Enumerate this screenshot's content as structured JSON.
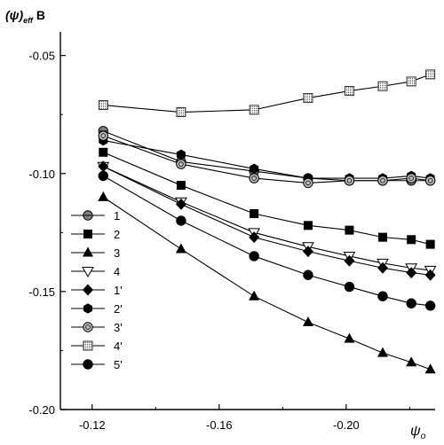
{
  "chart_data": {
    "type": "line",
    "ylabel_main": "(ψ)",
    "ylabel_sub": "eff",
    "ylabel_suffix": " B",
    "xlabel_main": "ψ",
    "xlabel_sub": "o",
    "xlim": [
      -0.11,
      -0.228
    ],
    "ylim": [
      -0.2,
      -0.04
    ],
    "xticks": [
      -0.12,
      -0.16,
      -0.2
    ],
    "xtick_labels": [
      "-0.12",
      "-0.16",
      "-0.20"
    ],
    "yticks": [
      -0.05,
      -0.1,
      -0.15,
      -0.2
    ],
    "ytick_labels": [
      "-0.05",
      "-0.10",
      "-0.15",
      "-0.20"
    ],
    "grid": false,
    "legend_position": "left-middle",
    "series": [
      {
        "name": "1",
        "marker": "circle-cross",
        "x": [
          -0.1235,
          -0.148,
          -0.171,
          -0.188,
          -0.201,
          -0.2115,
          -0.2205,
          -0.2265
        ],
        "y": [
          -0.082,
          -0.095,
          -0.099,
          -0.102,
          -0.103,
          -0.103,
          -0.103,
          -0.103
        ]
      },
      {
        "name": "2",
        "marker": "square",
        "x": [
          -0.1235,
          -0.148,
          -0.171,
          -0.188,
          -0.201,
          -0.2115,
          -0.2205,
          -0.2265
        ],
        "y": [
          -0.091,
          -0.105,
          -0.117,
          -0.122,
          -0.124,
          -0.127,
          -0.128,
          -0.13
        ]
      },
      {
        "name": "3",
        "marker": "triangle-up",
        "x": [
          -0.1235,
          -0.148,
          -0.171,
          -0.188,
          -0.201,
          -0.2115,
          -0.2205,
          -0.2265
        ],
        "y": [
          -0.11,
          -0.132,
          -0.152,
          -0.163,
          -0.17,
          -0.176,
          -0.18,
          -0.183
        ]
      },
      {
        "name": "4",
        "marker": "triangle-down",
        "x": [
          -0.1235,
          -0.148,
          -0.171,
          -0.188,
          -0.201,
          -0.2115,
          -0.2205,
          -0.2265
        ],
        "y": [
          -0.097,
          -0.112,
          -0.125,
          -0.131,
          -0.135,
          -0.138,
          -0.14,
          -0.141
        ]
      },
      {
        "name": "1'",
        "marker": "diamond",
        "x": [
          -0.1235,
          -0.148,
          -0.171,
          -0.188,
          -0.201,
          -0.2115,
          -0.2205,
          -0.2265
        ],
        "y": [
          -0.097,
          -0.113,
          -0.127,
          -0.133,
          -0.137,
          -0.14,
          -0.142,
          -0.143
        ]
      },
      {
        "name": "2'",
        "marker": "hexagon",
        "x": [
          -0.1235,
          -0.148,
          -0.171,
          -0.188,
          -0.201,
          -0.2115,
          -0.2205,
          -0.2265
        ],
        "y": [
          -0.086,
          -0.092,
          -0.098,
          -0.102,
          -0.102,
          -0.102,
          -0.101,
          -0.102
        ]
      },
      {
        "name": "3'",
        "marker": "circle-dot",
        "x": [
          -0.1235,
          -0.148,
          -0.171,
          -0.188,
          -0.201,
          -0.2115,
          -0.2205,
          -0.2265
        ],
        "y": [
          -0.084,
          -0.096,
          -0.102,
          -0.104,
          -0.103,
          -0.103,
          -0.102,
          -0.103
        ]
      },
      {
        "name": "4'",
        "marker": "square-dotted",
        "x": [
          -0.1235,
          -0.148,
          -0.171,
          -0.188,
          -0.201,
          -0.2115,
          -0.2205,
          -0.2265
        ],
        "y": [
          -0.071,
          -0.074,
          -0.073,
          -0.068,
          -0.065,
          -0.063,
          -0.061,
          -0.058
        ]
      },
      {
        "name": "5'",
        "marker": "circle",
        "x": [
          -0.1235,
          -0.148,
          -0.171,
          -0.188,
          -0.201,
          -0.2115,
          -0.2205,
          -0.2265
        ],
        "y": [
          -0.101,
          -0.12,
          -0.135,
          -0.143,
          -0.148,
          -0.152,
          -0.155,
          -0.156
        ]
      }
    ]
  }
}
